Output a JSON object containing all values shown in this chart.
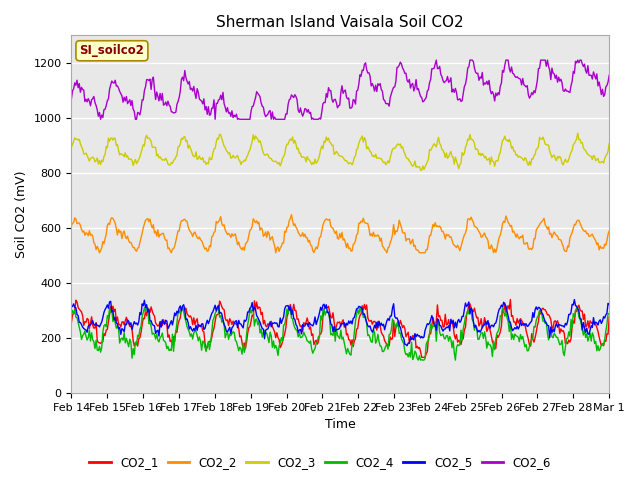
{
  "title": "Sherman Island Vaisala Soil CO2",
  "xlabel": "Time",
  "ylabel": "Soil CO2 (mV)",
  "legend_label": "SI_soilco2",
  "ylim": [
    0,
    1300
  ],
  "yticks": [
    0,
    200,
    400,
    600,
    800,
    1000,
    1200
  ],
  "date_labels": [
    "Feb 14",
    "Feb 15",
    "Feb 16",
    "Feb 17",
    "Feb 18",
    "Feb 19",
    "Feb 20",
    "Feb 21",
    "Feb 22",
    "Feb 23",
    "Feb 24",
    "Feb 25",
    "Feb 26",
    "Feb 27",
    "Feb 28",
    "Mar 1"
  ],
  "n_points": 480,
  "colors": {
    "CO2_1": "#ff0000",
    "CO2_2": "#ff8c00",
    "CO2_3": "#cccc00",
    "CO2_4": "#00bb00",
    "CO2_5": "#0000ff",
    "CO2_6": "#aa00cc"
  },
  "plot_bg": "#e8e8e8",
  "fig_bg": "#ffffff",
  "grid_color": "#ffffff",
  "title_fontsize": 11,
  "label_fontsize": 9,
  "tick_fontsize": 8
}
